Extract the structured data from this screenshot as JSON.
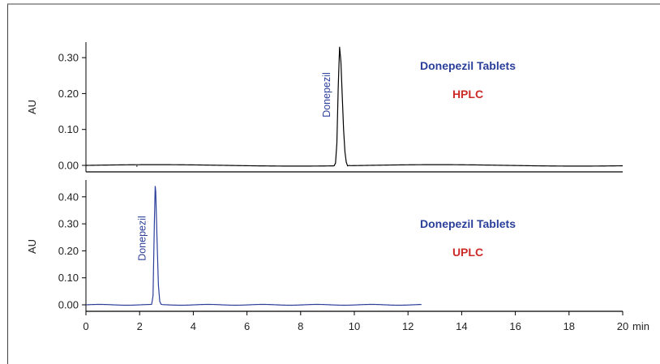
{
  "chart_data": [
    {
      "type": "line",
      "panel": "top",
      "title": "Donepezil Tablets",
      "subtitle": "HPLC",
      "ylabel": "AU",
      "ylim": [
        0,
        0.34
      ],
      "yticks": [
        0.0,
        0.1,
        0.2,
        0.3
      ],
      "ytick_labels": [
        "0.00",
        "0.10",
        "0.20",
        "0.30"
      ],
      "xlim": [
        0,
        20
      ],
      "color": "#000000",
      "peaks": [
        {
          "label": "Donepezil",
          "x": 9.45,
          "y": 0.33
        }
      ],
      "trace_end_x": 20,
      "baseline": 0.0
    },
    {
      "type": "line",
      "panel": "bottom",
      "title": "Donepezil Tablets",
      "subtitle": "UPLC",
      "ylabel": "AU",
      "ylim": [
        0,
        0.46
      ],
      "yticks": [
        0.0,
        0.1,
        0.2,
        0.3,
        0.4
      ],
      "ytick_labels": [
        "0.00",
        "0.10",
        "0.20",
        "0.30",
        "0.40"
      ],
      "xlim": [
        0,
        20
      ],
      "xticks": [
        0,
        2,
        4,
        6,
        8,
        10,
        12,
        14,
        16,
        18,
        20
      ],
      "xtick_labels": [
        "0",
        "2",
        "4",
        "6",
        "8",
        "10",
        "12",
        "14",
        "16",
        "18",
        "20"
      ],
      "xunit": "min",
      "color": "#2b3f9a",
      "peaks": [
        {
          "label": "Donepezil",
          "x": 2.58,
          "y": 0.44
        }
      ],
      "trace_end_x": 12.5,
      "baseline": 0.0
    }
  ],
  "colors": {
    "blue": "#2b3f9a",
    "red": "#cc2a26",
    "black": "#000000",
    "border": "#444444"
  }
}
